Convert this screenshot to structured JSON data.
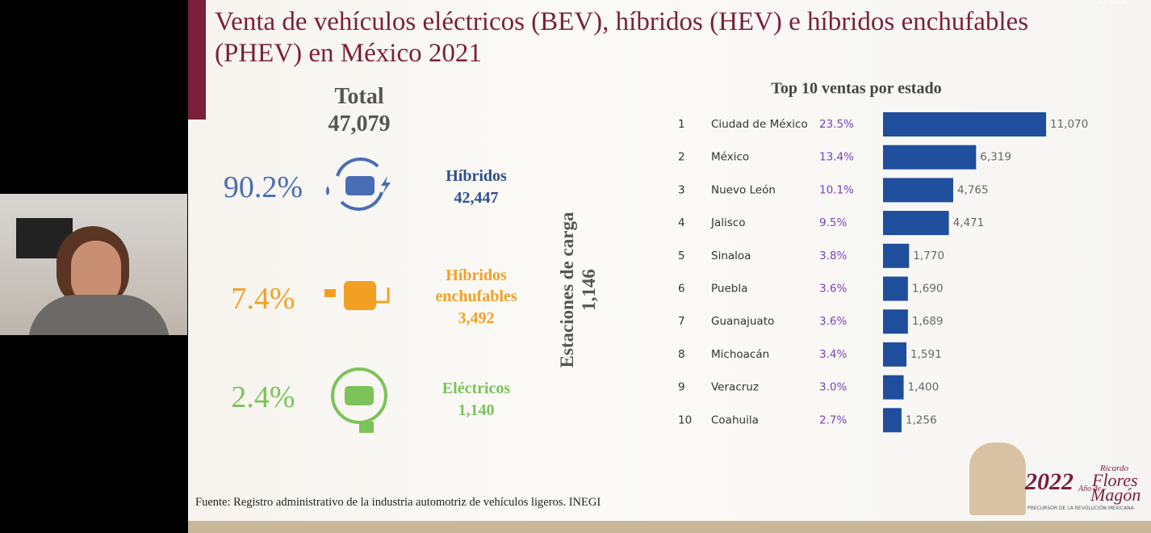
{
  "corner": "Ayuda",
  "slide": {
    "title": "Venta de vehículos eléctricos (BEV), híbridos (HEV) e híbridos enchufables (PHEV) en México 2021",
    "total_label": "Total",
    "total": "47,079",
    "segments": [
      {
        "percent": "90.2%",
        "name": "Híbridos",
        "value": "42,447",
        "color": "#4a6db5",
        "text_color": "#2f4f8f"
      },
      {
        "percent": "7.4%",
        "name": "Híbridos enchufables",
        "value": "3,492",
        "color": "#f2a024",
        "text_color": "#f2a024"
      },
      {
        "percent": "2.4%",
        "name": "Eléctricos",
        "value": "1,140",
        "color": "#7cc35a",
        "text_color": "#7cc35a"
      }
    ],
    "stations_label": "Estaciones de carga",
    "stations": "1,146",
    "source": "Fuente: Registro administrativo de la industria automotriz de vehículos ligeros. INEGI",
    "logo": {
      "year": "2022",
      "top": "Ricardo",
      "middle": "Año de",
      "name": "Flores",
      "name2": "Magón",
      "tagline": "PRECURSOR DE LA REVOLUCIÓN MEXICANA"
    }
  },
  "chart_data": {
    "type": "bar",
    "orientation": "horizontal",
    "title": "Top 10 ventas por estado",
    "ranks": [
      1,
      2,
      3,
      4,
      5,
      6,
      7,
      8,
      9,
      10
    ],
    "categories": [
      "Ciudad de México",
      "México",
      "Nuevo León",
      "Jalisco",
      "Sinaloa",
      "Puebla",
      "Guanajuato",
      "Michoacán",
      "Veracruz",
      "Coahuila"
    ],
    "shares": [
      "23.5%",
      "13.4%",
      "10.1%",
      "9.5%",
      "3.8%",
      "3.6%",
      "3.6%",
      "3.4%",
      "3.0%",
      "2.7%"
    ],
    "values": [
      11070,
      6319,
      4765,
      4471,
      1770,
      1690,
      1689,
      1591,
      1400,
      1256
    ],
    "value_labels": [
      "11,070",
      "6,319",
      "4,765",
      "4,471",
      "1,770",
      "1,690",
      "1,689",
      "1,591",
      "1,400",
      "1,256"
    ],
    "color": "#1f4e9c",
    "share_color": "#7b3fbf"
  }
}
